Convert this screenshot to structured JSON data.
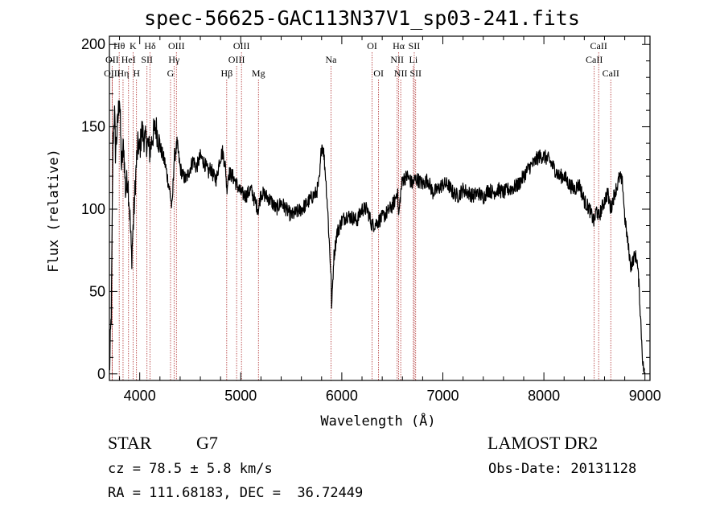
{
  "chart_data": {
    "type": "line",
    "title": "spec-56625-GAC113N37V1_sp03-241.fits",
    "xlabel": "Wavelength (Å)",
    "ylabel": "Flux (relative)",
    "xlim": [
      3700,
      9050
    ],
    "ylim": [
      -4,
      205
    ],
    "xticks": [
      4000,
      5000,
      6000,
      7000,
      8000,
      9000
    ],
    "yticks": [
      0,
      50,
      100,
      150,
      200
    ],
    "grid": false,
    "line_color": "#000000",
    "marker_color": "#b03030",
    "spectral_lines": [
      {
        "label": "Hθ",
        "wavelength": 3797,
        "row": 0
      },
      {
        "label": "OII",
        "wavelength": 3727,
        "row": 1
      },
      {
        "label": "OIII",
        "wavelength": 3727,
        "row": 2
      },
      {
        "label": "HeI",
        "wavelength": 3889,
        "row": 1
      },
      {
        "label": "Hη",
        "wavelength": 3835,
        "row": 2
      },
      {
        "label": "K",
        "wavelength": 3934,
        "row": 0
      },
      {
        "label": "H",
        "wavelength": 3968,
        "row": 2
      },
      {
        "label": "Hδ",
        "wavelength": 4102,
        "row": 0
      },
      {
        "label": "SII",
        "wavelength": 4072,
        "row": 1
      },
      {
        "label": "OIII",
        "wavelength": 4363,
        "row": 0
      },
      {
        "label": "Hγ",
        "wavelength": 4340,
        "row": 1
      },
      {
        "label": "G",
        "wavelength": 4305,
        "row": 2
      },
      {
        "label": "Hβ",
        "wavelength": 4861,
        "row": 2
      },
      {
        "label": "OIII",
        "wavelength": 5007,
        "row": 0
      },
      {
        "label": "OIII",
        "wavelength": 4959,
        "row": 1
      },
      {
        "label": "Mg",
        "wavelength": 5175,
        "row": 2
      },
      {
        "label": "Na",
        "wavelength": 5893,
        "row": 1
      },
      {
        "label": "OI",
        "wavelength": 6300,
        "row": 0
      },
      {
        "label": "OI",
        "wavelength": 6364,
        "row": 2
      },
      {
        "label": "Hα",
        "wavelength": 6563,
        "row": 0
      },
      {
        "label": "NII",
        "wavelength": 6548,
        "row": 1
      },
      {
        "label": "NII",
        "wavelength": 6583,
        "row": 2
      },
      {
        "label": "SII",
        "wavelength": 6717,
        "row": 0
      },
      {
        "label": "Li",
        "wavelength": 6708,
        "row": 1
      },
      {
        "label": "SII",
        "wavelength": 6731,
        "row": 2
      },
      {
        "label": "CaII",
        "wavelength": 8542,
        "row": 0
      },
      {
        "label": "CaII",
        "wavelength": 8498,
        "row": 1
      },
      {
        "label": "CaII",
        "wavelength": 8662,
        "row": 2
      }
    ],
    "series": [
      {
        "x": [
          3700,
          3720,
          3735,
          3750,
          3760,
          3780,
          3800,
          3820,
          3840,
          3860,
          3880,
          3900,
          3920,
          3940,
          3960,
          3970,
          3985,
          4000,
          4020,
          4050,
          4080,
          4100,
          4130,
          4160,
          4200,
          4250,
          4300,
          4320,
          4340,
          4370,
          4400,
          4430,
          4460,
          4500,
          4530,
          4560,
          4600,
          4640,
          4680,
          4700,
          4730,
          4760,
          4790,
          4820,
          4850,
          4861,
          4880,
          4920,
          4960,
          5000,
          5050,
          5100,
          5150,
          5175,
          5200,
          5250,
          5300,
          5350,
          5400,
          5450,
          5500,
          5550,
          5600,
          5650,
          5700,
          5750,
          5780,
          5800,
          5820,
          5840,
          5860,
          5880,
          5893,
          5900,
          5920,
          5950,
          6000,
          6050,
          6100,
          6150,
          6200,
          6250,
          6300,
          6350,
          6400,
          6450,
          6500,
          6530,
          6550,
          6563,
          6580,
          6600,
          6650,
          6700,
          6720,
          6750,
          6800,
          6850,
          6900,
          6950,
          7000,
          7050,
          7100,
          7150,
          7200,
          7250,
          7300,
          7350,
          7400,
          7450,
          7500,
          7550,
          7600,
          7650,
          7700,
          7750,
          7800,
          7850,
          7900,
          7950,
          8000,
          8050,
          8100,
          8150,
          8200,
          8250,
          8300,
          8350,
          8400,
          8450,
          8498,
          8520,
          8542,
          8570,
          8600,
          8630,
          8662,
          8700,
          8730,
          8750,
          8780,
          8800,
          8830,
          8860,
          8900,
          8920,
          8940,
          8960,
          8980,
          9000
        ],
        "y": [
          0,
          40,
          140,
          160,
          135,
          150,
          170,
          125,
          140,
          110,
          120,
          100,
          70,
          95,
          120,
          130,
          140,
          135,
          148,
          142,
          140,
          135,
          145,
          150,
          138,
          128,
          110,
          100,
          130,
          140,
          125,
          120,
          118,
          125,
          130,
          125,
          132,
          128,
          122,
          125,
          120,
          118,
          130,
          135,
          125,
          112,
          122,
          120,
          115,
          110,
          108,
          112,
          103,
          100,
          110,
          108,
          105,
          100,
          104,
          100,
          96,
          98,
          100,
          103,
          107,
          110,
          118,
          140,
          135,
          120,
          100,
          75,
          60,
          40,
          70,
          85,
          93,
          96,
          95,
          93,
          100,
          100,
          90,
          92,
          95,
          98,
          102,
          106,
          112,
          95,
          108,
          118,
          120,
          115,
          118,
          118,
          115,
          118,
          110,
          112,
          115,
          115,
          110,
          108,
          112,
          110,
          108,
          110,
          107,
          112,
          110,
          112,
          110,
          112,
          113,
          115,
          120,
          125,
          128,
          132,
          132,
          130,
          125,
          120,
          120,
          115,
          112,
          115,
          105,
          100,
          92,
          100,
          95,
          100,
          105,
          110,
          100,
          110,
          115,
          120,
          115,
          95,
          80,
          65,
          72,
          70,
          55,
          30,
          5,
          0
        ]
      }
    ]
  },
  "info": {
    "object_type": "STAR",
    "subclass": "G7",
    "survey": "LAMOST DR2",
    "cz": "cz = 78.5 ± 5.8 km/s",
    "obs_date": "Obs-Date: 20131128",
    "coords": "RA = 111.68183, DEC =  36.72449"
  }
}
